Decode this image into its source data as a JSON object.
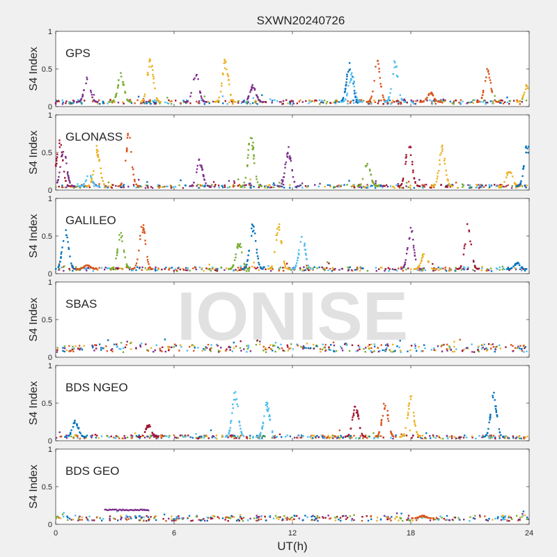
{
  "figure": {
    "title": "SXWN20240726",
    "watermark": "IONISE",
    "xlabel": "UT(h)"
  },
  "chart_data": {
    "type": "scatter",
    "title": "SXWN20240726",
    "xlabel": "UT(h)",
    "xlim": [
      0,
      24
    ],
    "x_ticks": [
      0,
      6,
      12,
      18,
      24
    ],
    "ylabel": "S4 Index",
    "ylim": [
      0,
      1
    ],
    "y_ticks": [
      0,
      0.5,
      1
    ],
    "grid": false,
    "series_colors": [
      "#0072BD",
      "#D95319",
      "#EDB120",
      "#7E2F8E",
      "#77AC30",
      "#4DBEEE",
      "#A2142F"
    ],
    "panels": [
      {
        "name": "GPS",
        "baseline": 0.06,
        "spikes": [
          [
            1.6,
            0.4,
            3
          ],
          [
            3.3,
            0.45,
            4
          ],
          [
            4.8,
            0.67,
            2
          ],
          [
            7.1,
            0.5,
            3
          ],
          [
            8.6,
            0.66,
            2
          ],
          [
            10.0,
            0.3,
            3
          ],
          [
            14.9,
            0.62,
            0
          ],
          [
            15.0,
            0.45,
            5
          ],
          [
            16.3,
            0.63,
            1
          ],
          [
            17.2,
            0.62,
            5
          ],
          [
            19.0,
            0.2,
            1
          ],
          [
            21.9,
            0.52,
            1
          ],
          [
            23.9,
            0.3,
            2
          ]
        ]
      },
      {
        "name": "GLONASS",
        "baseline": 0.05,
        "spikes": [
          [
            0.2,
            0.72,
            6
          ],
          [
            0.4,
            0.6,
            3
          ],
          [
            1.7,
            0.22,
            5
          ],
          [
            2.1,
            0.6,
            2
          ],
          [
            3.7,
            0.8,
            1
          ],
          [
            7.3,
            0.42,
            3
          ],
          [
            9.9,
            0.8,
            4
          ],
          [
            11.8,
            0.58,
            3
          ],
          [
            15.8,
            0.4,
            4
          ],
          [
            17.9,
            0.73,
            6
          ],
          [
            19.6,
            0.6,
            2
          ],
          [
            23.0,
            0.3,
            2
          ],
          [
            23.9,
            0.65,
            0
          ]
        ]
      },
      {
        "name": "GALILEO",
        "baseline": 0.06,
        "spikes": [
          [
            0.5,
            0.67,
            0
          ],
          [
            1.6,
            0.12,
            1
          ],
          [
            3.3,
            0.6,
            4
          ],
          [
            4.4,
            0.7,
            1
          ],
          [
            9.3,
            0.45,
            4
          ],
          [
            10.0,
            0.72,
            0
          ],
          [
            11.3,
            0.7,
            2
          ],
          [
            12.5,
            0.55,
            5
          ],
          [
            18.0,
            0.65,
            3
          ],
          [
            18.7,
            0.3,
            2
          ],
          [
            20.9,
            0.72,
            6
          ],
          [
            23.4,
            0.15,
            0
          ]
        ]
      },
      {
        "name": "SBAS",
        "baseline": 0.12,
        "spikes": []
      },
      {
        "name": "BDS NGEO",
        "baseline": 0.05,
        "spikes": [
          [
            1.0,
            0.28,
            0
          ],
          [
            4.7,
            0.22,
            6
          ],
          [
            9.1,
            0.68,
            5
          ],
          [
            10.7,
            0.52,
            5
          ],
          [
            15.2,
            0.5,
            6
          ],
          [
            16.7,
            0.55,
            1
          ],
          [
            18.0,
            0.62,
            2
          ],
          [
            22.2,
            0.65,
            0
          ]
        ]
      },
      {
        "name": "BDS GEO",
        "baseline": 0.08,
        "spikes": [
          [
            18.6,
            0.12,
            1
          ]
        ],
        "segments": [
          [
            2.5,
            4.7,
            0.19,
            3
          ]
        ]
      }
    ]
  }
}
